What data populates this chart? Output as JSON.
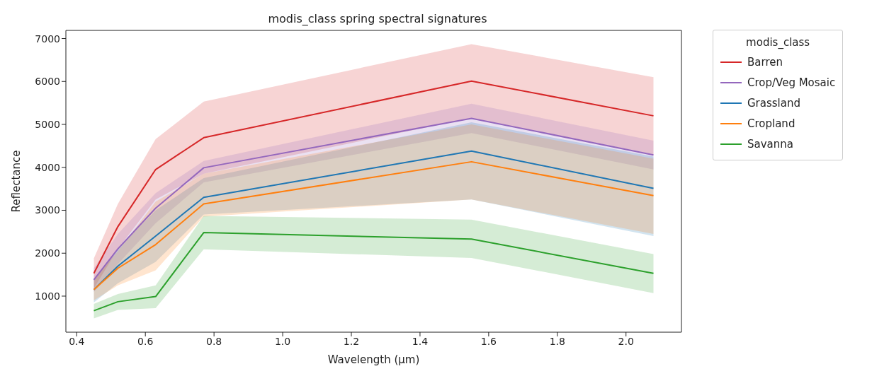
{
  "chart_data": {
    "type": "line",
    "title": "modis_class spring spectral signatures",
    "xlabel": "Wavelength (µm)",
    "ylabel": "Reflectance",
    "legend_title": "modis_class",
    "legend": "right",
    "grid": false,
    "x": [
      0.45,
      0.52,
      0.63,
      0.77,
      1.55,
      2.08
    ],
    "xlim": [
      0.3685,
      2.1615
    ],
    "xticks": [
      0.4,
      0.6,
      0.8,
      {
        "value": 1,
        "label": "1.0"
      },
      1.2,
      1.4,
      1.6,
      1.8,
      {
        "value": 2,
        "label": "2.0"
      }
    ],
    "ylim": [
      160,
      7190
    ],
    "yticks": [
      1000,
      2000,
      3000,
      4000,
      5000,
      6000,
      7000
    ],
    "series": [
      {
        "name": "Barren",
        "color": "#d62728",
        "values": [
          1530,
          2620,
          3950,
          4690,
          6010,
          5200
        ],
        "lower": [
          1180,
          2100,
          3250,
          3850,
          5150,
          4300
        ],
        "upper": [
          1880,
          3150,
          4660,
          5530,
          6870,
          6100
        ]
      },
      {
        "name": "Crop/Veg Mosaic",
        "color": "#9467bd",
        "values": [
          1380,
          2100,
          3050,
          3990,
          5140,
          4290
        ],
        "lower": [
          1100,
          1750,
          2700,
          3650,
          4800,
          3950
        ],
        "upper": [
          1650,
          2450,
          3400,
          4150,
          5480,
          4620
        ]
      },
      {
        "name": "Grassland",
        "color": "#1f77b4",
        "values": [
          1150,
          1700,
          2400,
          3300,
          4380,
          3510
        ],
        "lower": [
          850,
          1300,
          1800,
          2900,
          3250,
          2400
        ],
        "upper": [
          1400,
          2100,
          3000,
          3750,
          5050,
          4250
        ]
      },
      {
        "name": "Cropland",
        "color": "#ff7f0e",
        "values": [
          1150,
          1650,
          2200,
          3150,
          4130,
          3340
        ],
        "lower": [
          900,
          1250,
          1600,
          2850,
          3250,
          2450
        ],
        "upper": [
          1400,
          2050,
          3200,
          3850,
          5000,
          4200
        ]
      },
      {
        "name": "Savanna",
        "color": "#2ca02c",
        "values": [
          660,
          870,
          990,
          2480,
          2330,
          1530
        ],
        "lower": [
          480,
          680,
          720,
          2090,
          1890,
          1070
        ],
        "upper": [
          820,
          1050,
          1250,
          2870,
          2780,
          1980
        ]
      }
    ]
  }
}
